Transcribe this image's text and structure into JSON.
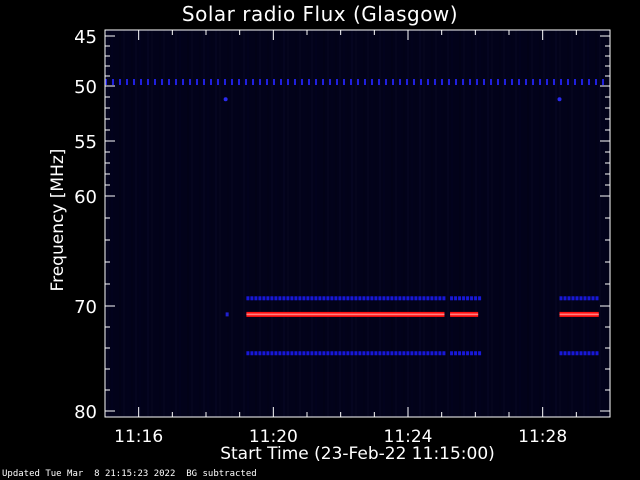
{
  "chart_data": {
    "type": "heatmap",
    "title": "Solar radio Flux (Glasgow)",
    "xlabel": "Start Time (23-Feb-22 11:15:00)",
    "ylabel": "Frequency [MHz]",
    "x_range_minutes": [
      11.25,
      11.5
    ],
    "x_ticks": [
      {
        "value": "11:16"
      },
      {
        "value": "11:20"
      },
      {
        "value": "11:24"
      },
      {
        "value": "11:28"
      }
    ],
    "y_ticks": [
      45,
      50,
      55,
      60,
      70,
      80
    ],
    "y_range": [
      45,
      80
    ],
    "background_color": "#02021a",
    "series": [
      {
        "freq": 49.6,
        "color": "#2020e0",
        "kind": "dotted",
        "segments": [
          [
            "11:15:00",
            "11:29:48"
          ]
        ]
      },
      {
        "freq": 69.3,
        "color": "#1818d8",
        "kind": "dashed",
        "segments": [
          [
            "11:19:12",
            "11:25:05"
          ],
          [
            "11:25:15",
            "11:26:05"
          ],
          [
            "11:28:30",
            "11:29:40"
          ]
        ]
      },
      {
        "freq": 70.8,
        "color": "#ff1010",
        "kind": "solid",
        "segments": [
          [
            "11:19:12",
            "11:25:05"
          ],
          [
            "11:25:15",
            "11:26:05"
          ],
          [
            "11:28:30",
            "11:29:40"
          ]
        ]
      },
      {
        "freq": 74.5,
        "color": "#1818d8",
        "kind": "dashed",
        "segments": [
          [
            "11:19:12",
            "11:25:05"
          ],
          [
            "11:25:15",
            "11:26:05"
          ],
          [
            "11:28:30",
            "11:29:40"
          ]
        ]
      }
    ],
    "points": [
      {
        "time": "11:18:35",
        "freq": 51.2,
        "color": "#2a2af0"
      },
      {
        "time": "11:28:30",
        "freq": 51.2,
        "color": "#2a2af0"
      }
    ]
  },
  "footer": {
    "updated": "Updated Tue Mar  8 21:15:23 2022",
    "bg": "BG subtracted"
  }
}
